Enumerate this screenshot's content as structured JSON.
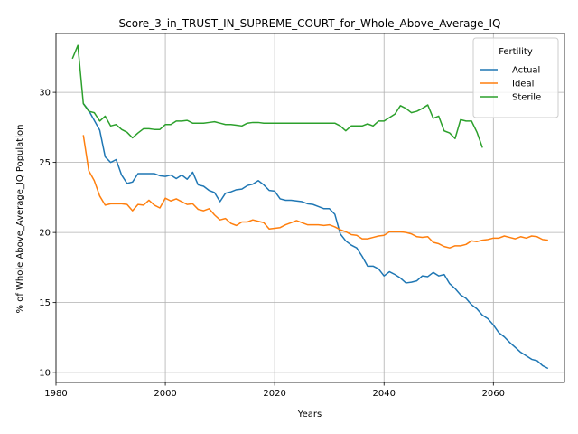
{
  "chart_data": {
    "type": "line",
    "title": "Score_3_in_TRUST_IN_SUPREME_COURT_for_Whole_Above_Average_IQ",
    "xlabel": "Years",
    "ylabel": "% of Whole Above_Average_IQ Population",
    "xlim": [
      1980,
      2073
    ],
    "ylim": [
      9.3,
      34.2
    ],
    "xticks": [
      1980,
      2000,
      2020,
      2040,
      2060
    ],
    "yticks": [
      10,
      15,
      20,
      25,
      30
    ],
    "grid": true,
    "legend": {
      "title": "Fertility",
      "placement": "top-right"
    },
    "series": [
      {
        "name": "Actual",
        "color": "#1f77b4",
        "x": [
          1985,
          1986,
          1987,
          1988,
          1989,
          1990,
          1991,
          1992,
          1993,
          1994,
          1995,
          1996,
          1997,
          1998,
          1999,
          2000,
          2001,
          2002,
          2003,
          2004,
          2005,
          2006,
          2007,
          2008,
          2009,
          2010,
          2011,
          2012,
          2013,
          2014,
          2015,
          2016,
          2017,
          2018,
          2019,
          2020,
          2021,
          2022,
          2023,
          2024,
          2025,
          2026,
          2027,
          2028,
          2029,
          2030,
          2031,
          2032,
          2033,
          2034,
          2035,
          2036,
          2037,
          2038,
          2039,
          2040,
          2041,
          2042,
          2043,
          2044,
          2045,
          2046,
          2047,
          2048,
          2049,
          2050,
          2051,
          2052,
          2053,
          2054,
          2055,
          2056,
          2057,
          2058,
          2059,
          2060,
          2061,
          2062,
          2063,
          2064,
          2065,
          2066,
          2067,
          2068,
          2069,
          2070
        ],
        "values": [
          29.2,
          28.7,
          28.0,
          27.3,
          25.4,
          25.0,
          25.2,
          24.1,
          23.5,
          23.6,
          24.2,
          24.2,
          24.2,
          24.2,
          24.05,
          24.0,
          24.1,
          23.85,
          24.1,
          23.8,
          24.3,
          23.4,
          23.3,
          23.0,
          22.85,
          22.2,
          22.8,
          22.9,
          23.05,
          23.1,
          23.35,
          23.45,
          23.7,
          23.4,
          23.0,
          22.95,
          22.4,
          22.3,
          22.3,
          22.25,
          22.2,
          22.05,
          22.0,
          21.85,
          21.7,
          21.7,
          21.3,
          19.9,
          19.4,
          19.1,
          18.9,
          18.3,
          17.6,
          17.6,
          17.4,
          16.9,
          17.2,
          17.0,
          16.75,
          16.4,
          16.45,
          16.55,
          16.9,
          16.85,
          17.15,
          16.9,
          17.0,
          16.35,
          16.0,
          15.55,
          15.3,
          14.85,
          14.55,
          14.1,
          13.85,
          13.4,
          12.85,
          12.55,
          12.15,
          11.8,
          11.45,
          11.2,
          10.95,
          10.85,
          10.5,
          10.3
        ]
      },
      {
        "name": "Ideal",
        "color": "#ff7f0e",
        "x": [
          1985,
          1986,
          1987,
          1988,
          1989,
          1990,
          1991,
          1992,
          1993,
          1994,
          1995,
          1996,
          1997,
          1998,
          1999,
          2000,
          2001,
          2002,
          2003,
          2004,
          2005,
          2006,
          2007,
          2008,
          2009,
          2010,
          2011,
          2012,
          2013,
          2014,
          2015,
          2016,
          2017,
          2018,
          2019,
          2020,
          2021,
          2022,
          2023,
          2024,
          2025,
          2026,
          2027,
          2028,
          2029,
          2030,
          2031,
          2032,
          2033,
          2034,
          2035,
          2036,
          2037,
          2038,
          2039,
          2040,
          2041,
          2042,
          2043,
          2044,
          2045,
          2046,
          2047,
          2048,
          2049,
          2050,
          2051,
          2052,
          2053,
          2054,
          2055,
          2056,
          2057,
          2058,
          2059,
          2060,
          2061,
          2062,
          2063,
          2064,
          2065,
          2066,
          2067,
          2068,
          2069,
          2070
        ],
        "values": [
          26.95,
          24.4,
          23.7,
          22.6,
          21.95,
          22.05,
          22.05,
          22.05,
          22.0,
          21.55,
          22.0,
          21.95,
          22.3,
          21.95,
          21.75,
          22.45,
          22.25,
          22.4,
          22.2,
          22.0,
          22.05,
          21.65,
          21.55,
          21.7,
          21.25,
          20.9,
          21.0,
          20.65,
          20.5,
          20.75,
          20.75,
          20.9,
          20.8,
          20.7,
          20.25,
          20.3,
          20.35,
          20.55,
          20.7,
          20.85,
          20.7,
          20.55,
          20.55,
          20.55,
          20.5,
          20.55,
          20.4,
          20.2,
          20.05,
          19.85,
          19.8,
          19.55,
          19.55,
          19.65,
          19.75,
          19.8,
          20.05,
          20.05,
          20.05,
          20.0,
          19.9,
          19.7,
          19.65,
          19.7,
          19.3,
          19.2,
          19.0,
          18.9,
          19.05,
          19.05,
          19.15,
          19.4,
          19.35,
          19.45,
          19.5,
          19.6,
          19.6,
          19.75,
          19.65,
          19.55,
          19.7,
          19.6,
          19.75,
          19.7,
          19.5,
          19.45
        ]
      },
      {
        "name": "Sterile",
        "color": "#2ca02c",
        "x": [
          1983,
          1984,
          1985,
          1986,
          1987,
          1988,
          1989,
          1990,
          1991,
          1992,
          1993,
          1994,
          1995,
          1996,
          1997,
          1998,
          1999,
          2000,
          2001,
          2002,
          2003,
          2004,
          2005,
          2006,
          2007,
          2008,
          2009,
          2010,
          2011,
          2012,
          2013,
          2014,
          2015,
          2016,
          2017,
          2018,
          2019,
          2020,
          2021,
          2022,
          2023,
          2024,
          2025,
          2026,
          2027,
          2028,
          2029,
          2030,
          2031,
          2032,
          2033,
          2034,
          2035,
          2036,
          2037,
          2038,
          2039,
          2040,
          2041,
          2042,
          2043,
          2044,
          2045,
          2046,
          2047,
          2048,
          2049,
          2050,
          2051,
          2052,
          2053,
          2054,
          2055,
          2056,
          2057,
          2058
        ],
        "values": [
          32.4,
          33.35,
          29.2,
          28.65,
          28.55,
          27.95,
          28.3,
          27.6,
          27.7,
          27.35,
          27.15,
          26.75,
          27.1,
          27.4,
          27.4,
          27.35,
          27.35,
          27.7,
          27.7,
          27.95,
          27.95,
          28.0,
          27.8,
          27.8,
          27.8,
          27.85,
          27.9,
          27.8,
          27.7,
          27.7,
          27.65,
          27.6,
          27.8,
          27.85,
          27.85,
          27.8,
          27.8,
          27.8,
          27.8,
          27.8,
          27.8,
          27.8,
          27.8,
          27.8,
          27.8,
          27.8,
          27.8,
          27.8,
          27.8,
          27.6,
          27.25,
          27.6,
          27.6,
          27.6,
          27.75,
          27.6,
          27.95,
          27.95,
          28.2,
          28.45,
          29.05,
          28.85,
          28.55,
          28.65,
          28.85,
          29.1,
          28.15,
          28.3,
          27.25,
          27.1,
          26.7,
          28.05,
          27.95,
          27.95,
          27.15,
          26.05
        ]
      }
    ]
  }
}
